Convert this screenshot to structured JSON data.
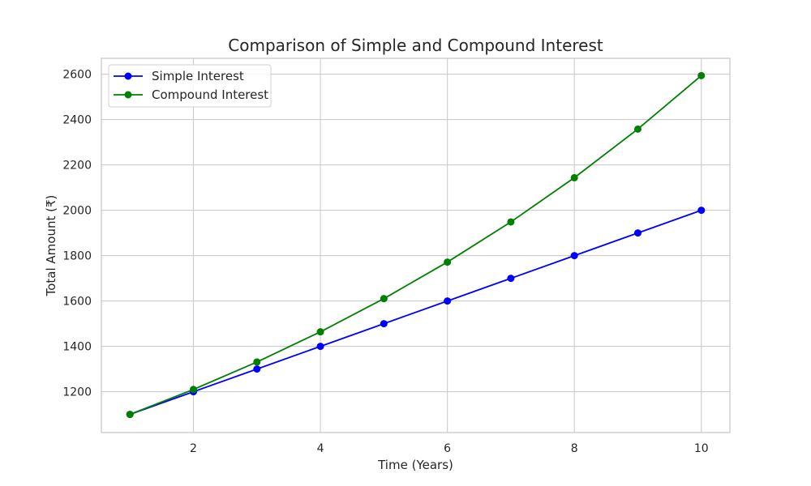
{
  "chart_data": {
    "type": "line",
    "title": "Comparison of Simple and Compound Interest",
    "xlabel": "Time (Years)",
    "ylabel": "Total Amount (₹)",
    "x": [
      1,
      2,
      3,
      4,
      5,
      6,
      7,
      8,
      9,
      10
    ],
    "xlim": [
      0.55,
      10.45
    ],
    "ylim": [
      1020,
      2670
    ],
    "xticks": [
      2,
      4,
      6,
      8,
      10
    ],
    "yticks": [
      1200,
      1400,
      1600,
      1800,
      2000,
      2200,
      2400,
      2600
    ],
    "grid": true,
    "legend_position": "upper-left",
    "series": [
      {
        "name": "Simple Interest",
        "color": "#0000ff",
        "marker": "circle",
        "values": [
          1100,
          1200,
          1300,
          1400,
          1500,
          1600,
          1700,
          1800,
          1900,
          2000
        ]
      },
      {
        "name": "Compound Interest",
        "color": "#008000",
        "marker": "circle",
        "values": [
          1100,
          1210,
          1331,
          1464.1,
          1610.51,
          1771.56,
          1948.72,
          2143.59,
          2357.95,
          2593.74
        ]
      }
    ]
  }
}
